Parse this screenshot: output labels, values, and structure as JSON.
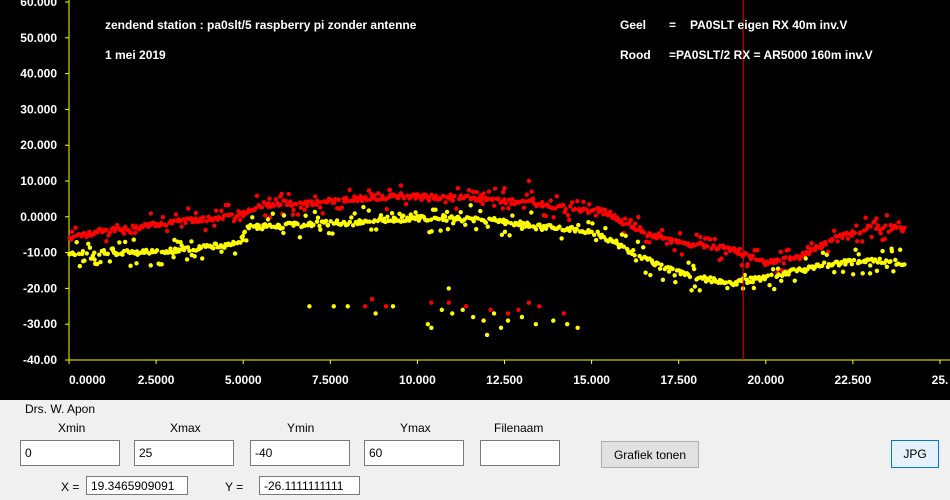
{
  "chart_data": {
    "type": "scatter",
    "title": "zendend station :  pa0slt/5 raspberry pi zonder antenne",
    "subtitle": "1 mei 2019",
    "xlim": [
      0,
      25
    ],
    "ylim": [
      -40,
      60
    ],
    "x_ticks": [
      "0.0000",
      "2.5000",
      "5.0000",
      "7.5000",
      "10.000",
      "12.500",
      "15.000",
      "17.500",
      "20.000",
      "22.500",
      "25."
    ],
    "y_ticks": [
      "60.000",
      "50.000",
      "40.000",
      "30.000",
      "20.000",
      "10.000",
      "0.0000",
      "-10.00",
      "-20.00",
      "-30.00",
      "-40.00"
    ],
    "cursor_x": 19.35,
    "colors": {
      "background": "#000000",
      "axis": "#ffff00",
      "series_geel": "#ffff00",
      "series_rood": "#ff0000",
      "cursor": "#ff0000"
    },
    "legend": [
      {
        "name": "Geel",
        "eq": "=",
        "text": "PA0SLT  eigen RX 40m inv.V"
      },
      {
        "name": "Rood",
        "eq": "=",
        "text": "PA0SLT/2  RX = AR5000 160m inv.V"
      }
    ],
    "series": [
      {
        "name": "Rood",
        "color": "#ff0000",
        "trend": [
          [
            0,
            -6
          ],
          [
            1,
            -4
          ],
          [
            2,
            -3
          ],
          [
            3,
            -1.5
          ],
          [
            4,
            -0.5
          ],
          [
            5,
            0.5
          ],
          [
            5.4,
            3
          ],
          [
            7,
            4
          ],
          [
            8,
            5
          ],
          [
            9,
            5.5
          ],
          [
            10,
            5.8
          ],
          [
            11,
            5.5
          ],
          [
            12,
            5
          ],
          [
            13,
            4
          ],
          [
            14,
            3
          ],
          [
            14.7,
            2
          ],
          [
            15.3,
            2
          ],
          [
            16,
            -2
          ],
          [
            17,
            -6
          ],
          [
            18,
            -8
          ],
          [
            19,
            -9
          ],
          [
            19.5,
            -11
          ],
          [
            20,
            -13
          ],
          [
            21,
            -11
          ],
          [
            22,
            -6
          ],
          [
            23,
            -3
          ],
          [
            24,
            -3
          ]
        ],
        "spread": 3.5,
        "outliers": [
          [
            8.5,
            -25
          ],
          [
            8.7,
            -23
          ],
          [
            9.1,
            -25
          ],
          [
            10.4,
            -24
          ],
          [
            10.9,
            -24
          ],
          [
            11.4,
            -25
          ],
          [
            12.1,
            -26
          ],
          [
            12.6,
            -27
          ],
          [
            12.9,
            -26
          ],
          [
            13.2,
            -24
          ],
          [
            13.5,
            -25
          ],
          [
            14.2,
            -27
          ],
          [
            13.2,
            10
          ],
          [
            12.5,
            8
          ],
          [
            11.6,
            7
          ],
          [
            11.9,
            6.5
          ]
        ]
      },
      {
        "name": "Geel",
        "color": "#ffff00",
        "trend": [
          [
            0,
            -10.5
          ],
          [
            1,
            -10
          ],
          [
            2,
            -10
          ],
          [
            3,
            -9.5
          ],
          [
            4,
            -8.5
          ],
          [
            4.9,
            -7.5
          ],
          [
            5.1,
            -3
          ],
          [
            6,
            -2.5
          ],
          [
            7,
            -2
          ],
          [
            8,
            -1.5
          ],
          [
            9,
            -1
          ],
          [
            10,
            -0.5
          ],
          [
            11,
            -0.5
          ],
          [
            12,
            -1
          ],
          [
            13,
            -2
          ],
          [
            14,
            -3
          ],
          [
            15,
            -4
          ],
          [
            16,
            -9
          ],
          [
            17,
            -14
          ],
          [
            18,
            -17
          ],
          [
            19,
            -18.5
          ],
          [
            20,
            -17
          ],
          [
            21,
            -15
          ],
          [
            22,
            -13
          ],
          [
            23,
            -12
          ],
          [
            24,
            -13
          ]
        ],
        "spread": 4,
        "outliers": [
          [
            6.9,
            -25
          ],
          [
            7.6,
            -25
          ],
          [
            8.0,
            -25
          ],
          [
            8.8,
            -27
          ],
          [
            9.3,
            -25
          ],
          [
            10.3,
            -30
          ],
          [
            10.4,
            -31
          ],
          [
            10.7,
            -26
          ],
          [
            11.0,
            -27
          ],
          [
            11.3,
            -26
          ],
          [
            11.6,
            -28
          ],
          [
            11.9,
            -29
          ],
          [
            12.2,
            -27
          ],
          [
            12.4,
            -31
          ],
          [
            12.6,
            -29
          ],
          [
            13.0,
            -28
          ],
          [
            13.4,
            -30
          ],
          [
            13.9,
            -29
          ],
          [
            14.3,
            -30
          ],
          [
            14.6,
            -31
          ],
          [
            10.9,
            -20
          ],
          [
            12.0,
            -33
          ]
        ]
      }
    ]
  },
  "panel": {
    "author": "Drs. W. Apon",
    "xmin_label": "Xmin",
    "xmin_value": "0",
    "xmax_label": "Xmax",
    "xmax_value": "25",
    "ymin_label": "Ymin",
    "ymin_value": "-40",
    "ymax_label": "Ymax",
    "ymax_value": "60",
    "filenaam_label": "Filenaam",
    "filenaam_value": "",
    "grafiek_button": "Grafiek tonen",
    "jpg_button": "JPG",
    "x_label": "X =",
    "x_value": "19.3465909091",
    "y_label": "Y =",
    "y_value": "-26.1111111111"
  }
}
